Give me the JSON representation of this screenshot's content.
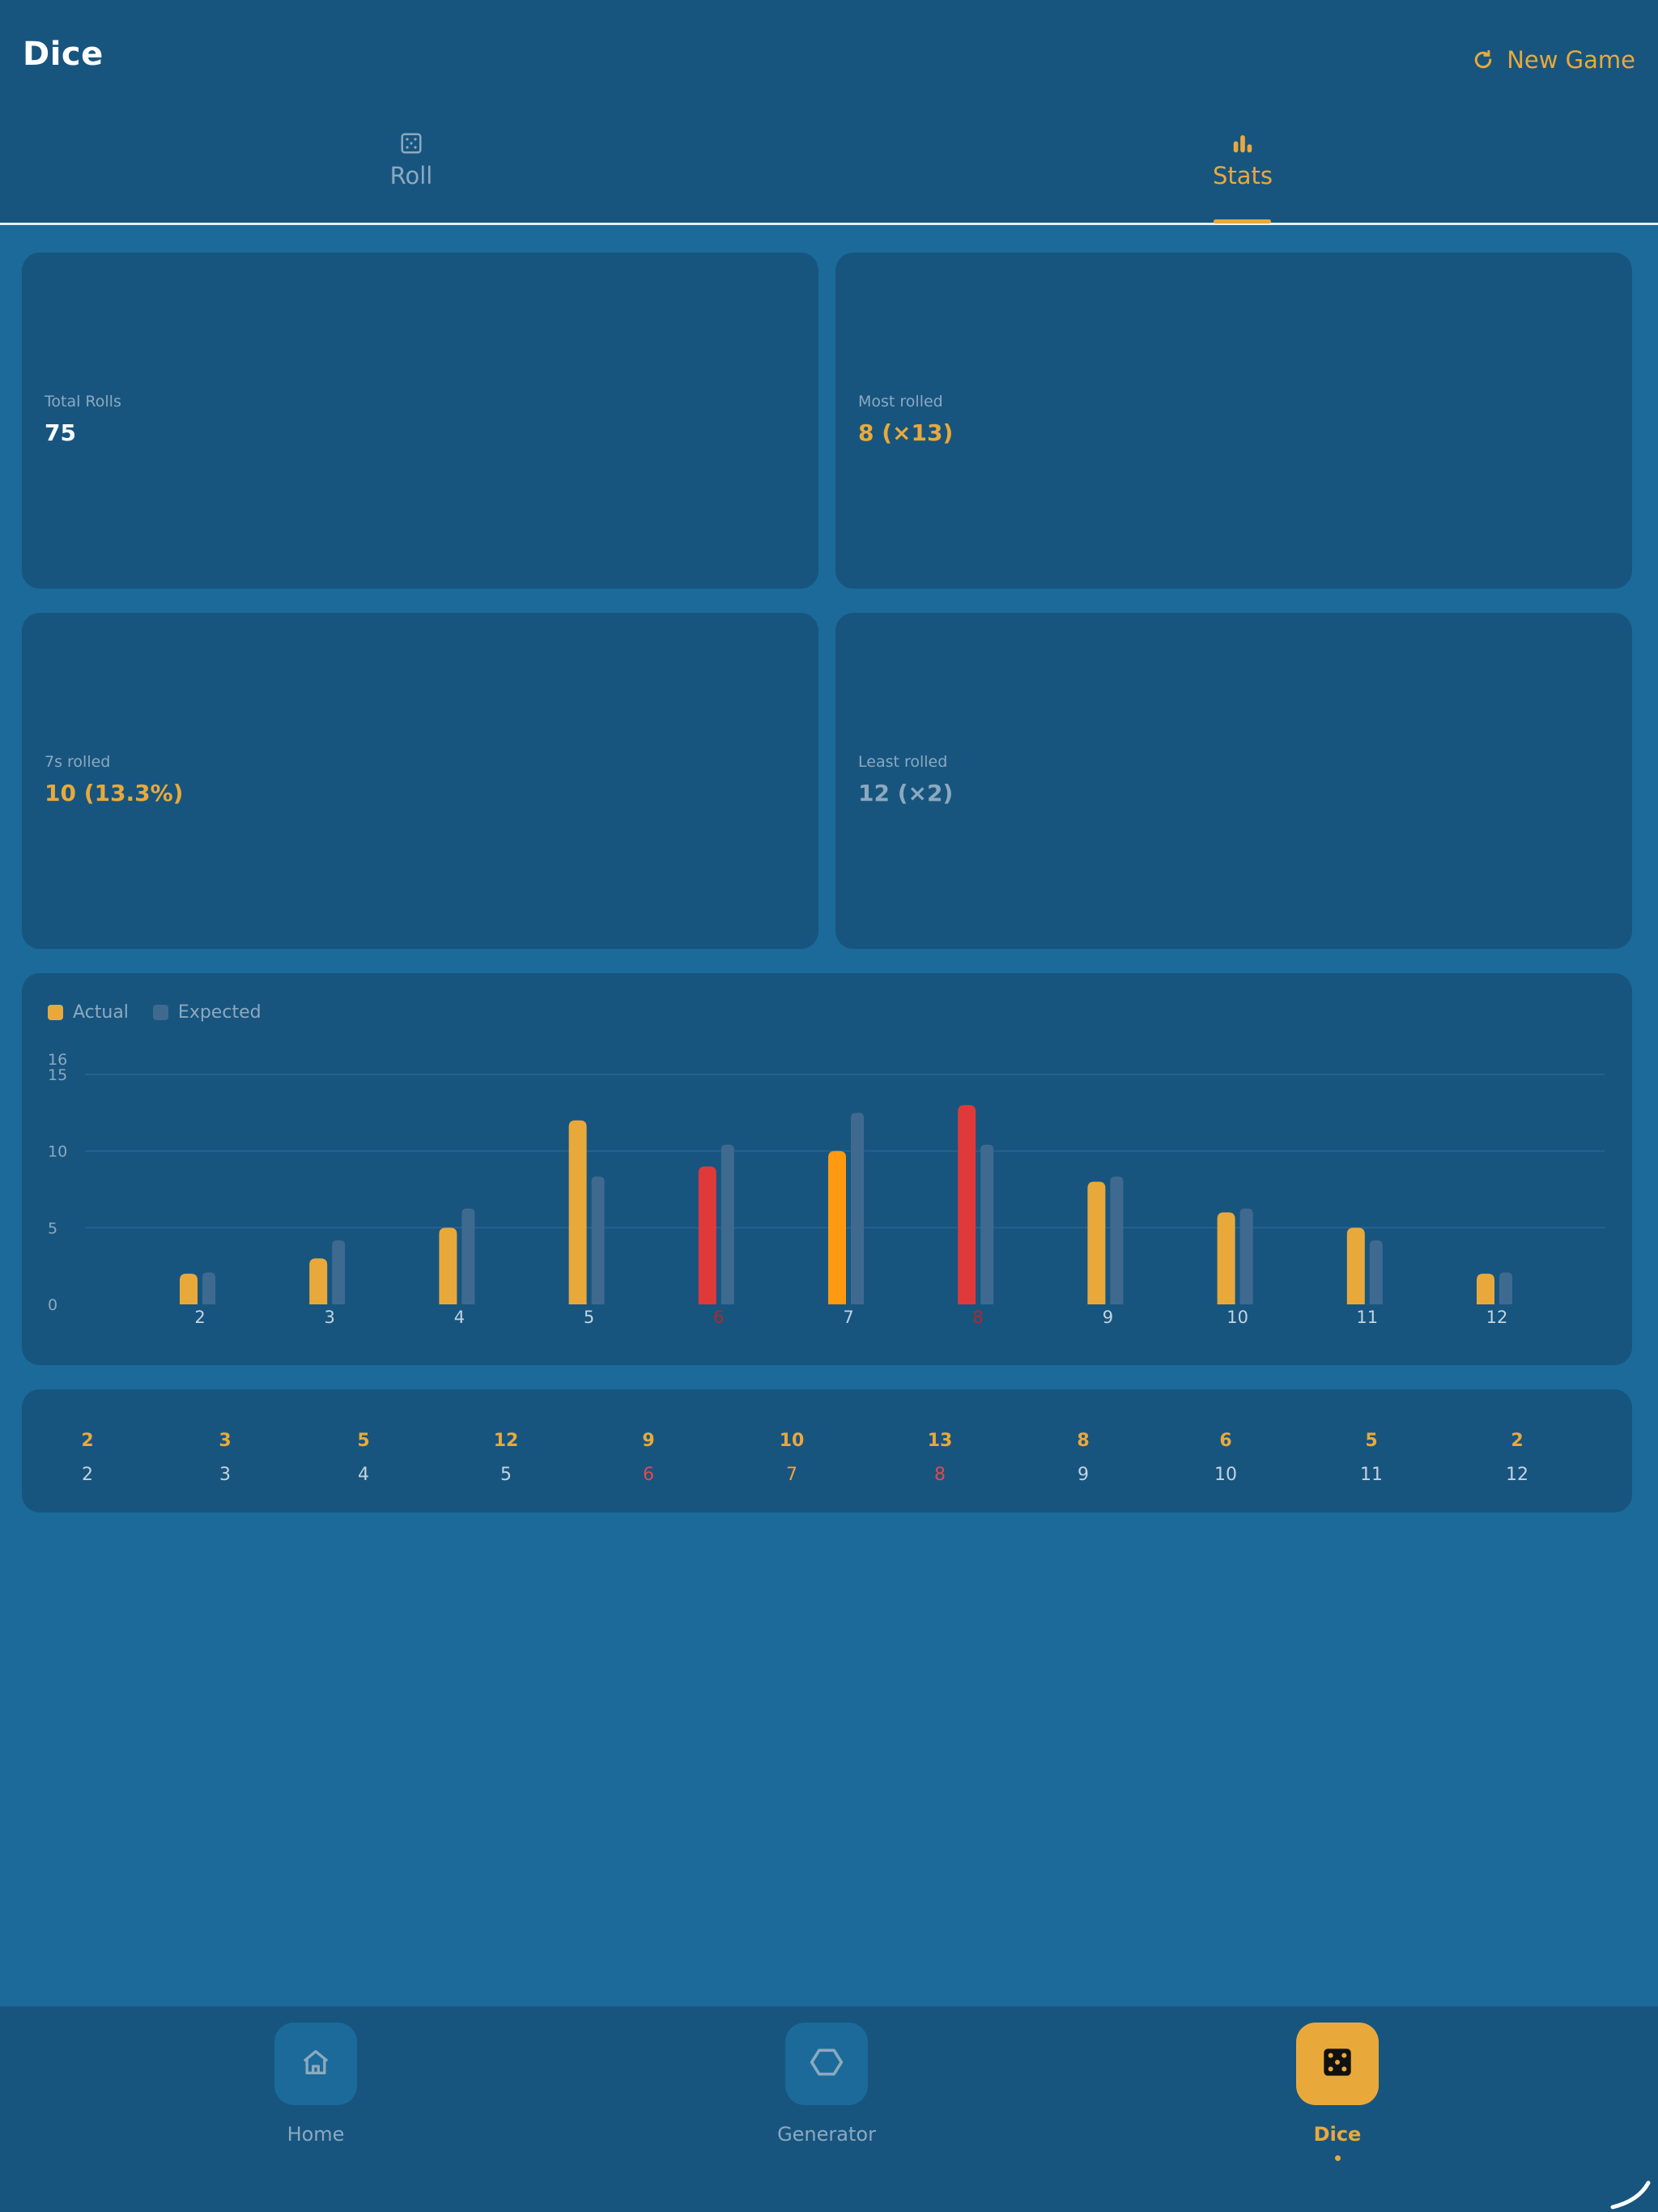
{
  "app": {
    "title": "Dice",
    "new_game_label": "New Game"
  },
  "tabs": [
    {
      "label": "Roll",
      "icon": "dice-outline-icon",
      "active": false
    },
    {
      "label": "Stats",
      "icon": "bar-chart-icon",
      "active": true
    }
  ],
  "stats": {
    "total_rolls": {
      "label": "Total Rolls",
      "value": "75"
    },
    "most_rolled": {
      "label": "Most rolled",
      "value": "8  (×13)"
    },
    "sevens_rolled": {
      "label": "7s rolled",
      "value": "10  (13.3%)"
    },
    "least_rolled": {
      "label": "Least rolled",
      "value": "12  (×2)"
    }
  },
  "legend": {
    "actual": "Actual",
    "expected": "Expected"
  },
  "colors": {
    "accent": "#e9a93a",
    "red": "#e0393a",
    "orange": "#ff9a10",
    "expected": "#3f6a8f",
    "muted": "#8ca9bf"
  },
  "chart_data": {
    "type": "bar",
    "categories": [
      "2",
      "3",
      "4",
      "5",
      "6",
      "7",
      "8",
      "9",
      "10",
      "11",
      "12"
    ],
    "series": [
      {
        "name": "Actual",
        "values": [
          2,
          3,
          5,
          12,
          9,
          10,
          13,
          8,
          6,
          5,
          2
        ]
      },
      {
        "name": "Expected",
        "values": [
          2.08,
          4.17,
          6.25,
          8.33,
          10.42,
          12.5,
          10.42,
          8.33,
          6.25,
          4.17,
          2.08
        ]
      }
    ],
    "highlight": {
      "6": "red",
      "7": "orange",
      "8": "red"
    },
    "y_ticks": [
      "0",
      "5",
      "10",
      "15",
      "16"
    ],
    "ylim": [
      0,
      16
    ],
    "grid": true,
    "legend_position": "top-left"
  },
  "distribution_table": {
    "counts": [
      "2",
      "3",
      "5",
      "12",
      "9",
      "10",
      "13",
      "8",
      "6",
      "5",
      "2"
    ],
    "sums": [
      "2",
      "3",
      "4",
      "5",
      "6",
      "7",
      "8",
      "9",
      "10",
      "11",
      "12"
    ]
  },
  "bottom_nav": [
    {
      "label": "Home",
      "icon": "home-icon",
      "active": false
    },
    {
      "label": "Generator",
      "icon": "hexagon-icon",
      "active": false
    },
    {
      "label": "Dice",
      "icon": "dice-five-icon",
      "active": true
    }
  ]
}
